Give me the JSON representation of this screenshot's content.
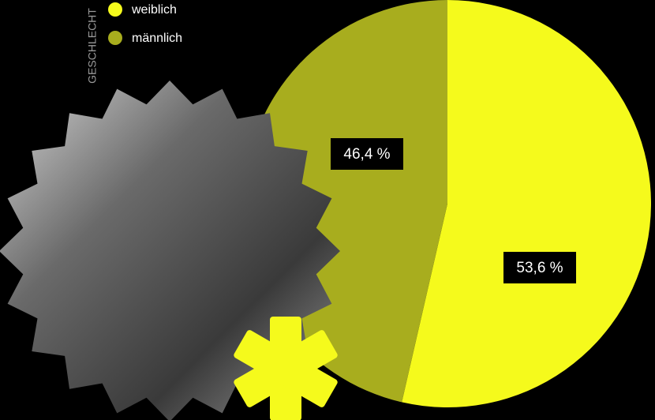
{
  "chart_data": {
    "type": "pie",
    "legend_title": "GESCHLECHT",
    "categories": [
      "weiblich",
      "männlich"
    ],
    "values": [
      53.6,
      46.4
    ],
    "value_labels": [
      "53,6 %",
      "46,4 %"
    ],
    "colors": [
      "#f5fa1c",
      "#a8ad1e"
    ]
  }
}
